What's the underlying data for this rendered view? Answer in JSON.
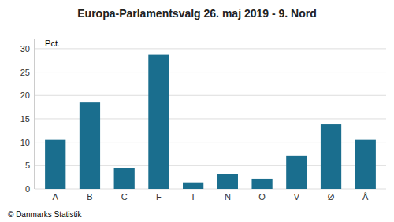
{
  "chart_data": {
    "type": "bar",
    "title": "Europa-Parlamentsvalg 26. maj 2019 - 9. Nord",
    "ylabel": "Pct.",
    "annotations": [
      "© Danmarks Statistik"
    ],
    "categories": [
      "A",
      "B",
      "C",
      "F",
      "I",
      "N",
      "O",
      "V",
      "Ø",
      "Å"
    ],
    "values": [
      10.5,
      18.5,
      4.5,
      28.7,
      1.4,
      3.2,
      2.2,
      7.1,
      13.8,
      10.5
    ],
    "color": "#1a6e8e",
    "ylim": [
      0,
      32
    ],
    "yticks": [
      0,
      5,
      10,
      15,
      20,
      25,
      30
    ],
    "grid": true
  }
}
